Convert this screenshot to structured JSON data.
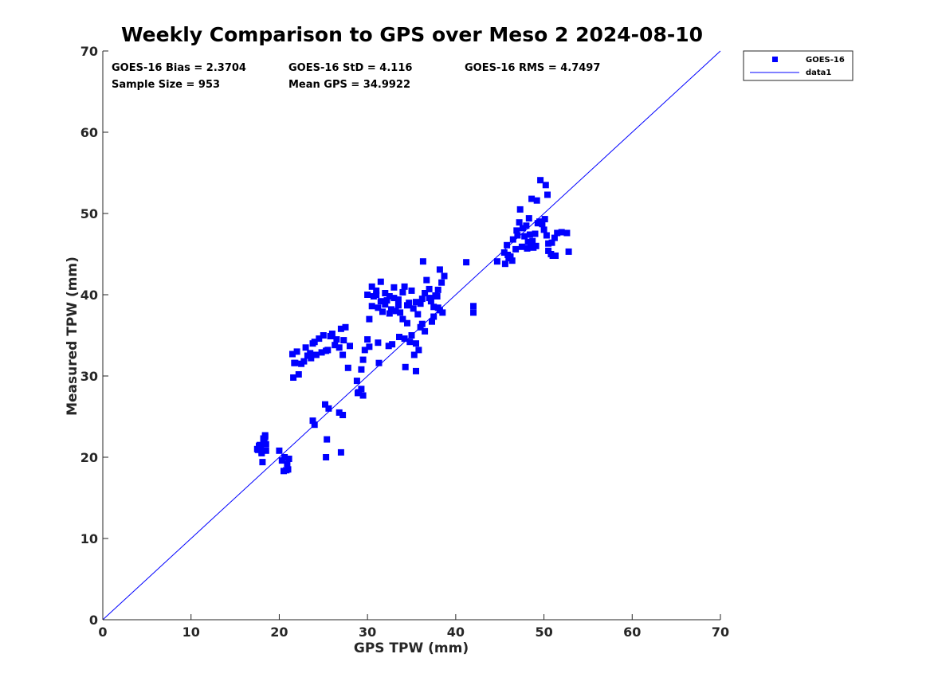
{
  "chart_data": {
    "type": "scatter",
    "title": "Weekly Comparison to GPS over Meso 2 2024-08-10",
    "xlabel": "GPS TPW (mm)",
    "ylabel": "Measured TPW (mm)",
    "xlim": [
      0,
      70
    ],
    "ylim": [
      0,
      70
    ],
    "xticks": [
      "0",
      "10",
      "20",
      "30",
      "40",
      "50",
      "60",
      "70"
    ],
    "yticks": [
      "0",
      "10",
      "20",
      "30",
      "40",
      "50",
      "60",
      "70"
    ],
    "grid": false,
    "legend_position": "outside-top-right",
    "stats": {
      "bias": "GOES-16 Bias = 2.3704",
      "std": "GOES-16 StD = 4.116",
      "rms": "GOES-16 RMS = 4.7497",
      "sample_size": "Sample Size = 953",
      "mean_gps": "Mean GPS = 34.9922"
    },
    "series": [
      {
        "name": "GOES-16",
        "type": "scatter",
        "marker": "square",
        "color": "#0000ff",
        "x": [
          17.5,
          17.8,
          18.0,
          18.2,
          18.4,
          18.5,
          17.9,
          18.3,
          17.6,
          18.1,
          18.5,
          18.2,
          18.0,
          17.7,
          18.4,
          20.0,
          20.3,
          20.6,
          20.9,
          21.0,
          20.5,
          21.1,
          20.8,
          21.5,
          21.7,
          22.0,
          21.6,
          22.2,
          21.8,
          23.0,
          23.5,
          24.0,
          23.2,
          22.8,
          23.8,
          24.5,
          25.0,
          25.5,
          26.0,
          26.5,
          27.0,
          27.5,
          28.0,
          24.2,
          25.3,
          26.3,
          27.3,
          26.8,
          25.8,
          23.6,
          22.5,
          24.8,
          27.8,
          27.2,
          23.8,
          24.0,
          25.2,
          25.6,
          26.8,
          27.2,
          25.4,
          25.3,
          27.0,
          28.8,
          29.0,
          29.3,
          29.5,
          29.7,
          30.0,
          30.2,
          30.5,
          30.7,
          31.0,
          31.2,
          31.5,
          31.7,
          32.0,
          32.2,
          32.5,
          32.7,
          33.0,
          33.2,
          33.5,
          33.7,
          34.0,
          34.2,
          34.5,
          34.7,
          35.0,
          35.2,
          35.5,
          35.7,
          36.0,
          36.2,
          36.5,
          36.7,
          37.0,
          37.2,
          37.5,
          37.7,
          38.0,
          38.2,
          30.0,
          30.5,
          31.0,
          31.5,
          32.0,
          32.5,
          33.0,
          33.5,
          34.0,
          34.5,
          35.0,
          35.5,
          36.0,
          36.5,
          37.0,
          37.5,
          38.0,
          38.5,
          31.2,
          32.8,
          34.2,
          35.8,
          37.3,
          29.5,
          30.2,
          31.3,
          32.4,
          33.6,
          34.8,
          35.3,
          36.2,
          28.9,
          29.3,
          34.3,
          35.5,
          36.3,
          38.2,
          38.4,
          38.7,
          37.9,
          41.2,
          42.0,
          42.0,
          45.5,
          46.0,
          46.5,
          47.0,
          47.5,
          48.0,
          48.5,
          49.0,
          49.5,
          50.0,
          50.5,
          51.0,
          51.5,
          52.0,
          45.8,
          46.8,
          47.8,
          48.8,
          49.8,
          50.8,
          46.2,
          47.2,
          48.2,
          49.2,
          50.2,
          51.2,
          52.8,
          47.3,
          48.3,
          49.3,
          50.3,
          48.6,
          49.6,
          50.1,
          50.4,
          50.5,
          48.7,
          48.4,
          47.6,
          46.4,
          45.6,
          51.3,
          52.6,
          50.9,
          49.1,
          48.1,
          46.9,
          45.9,
          44.7
        ],
        "y": [
          21.0,
          21.5,
          20.5,
          21.8,
          22.5,
          20.8,
          21.2,
          22.0,
          20.9,
          19.4,
          21.6,
          22.3,
          20.6,
          21.4,
          22.7,
          20.8,
          19.6,
          20.0,
          19.2,
          18.5,
          18.3,
          19.8,
          18.4,
          32.7,
          31.6,
          33.0,
          29.8,
          30.2,
          31.6,
          33.5,
          32.8,
          34.2,
          32.5,
          31.8,
          34.0,
          34.6,
          35.0,
          33.2,
          35.2,
          34.5,
          35.8,
          36.0,
          33.7,
          32.6,
          33.1,
          33.8,
          34.4,
          33.5,
          34.9,
          32.2,
          31.5,
          32.9,
          31.0,
          32.6,
          24.5,
          24.0,
          26.5,
          26.0,
          25.5,
          25.2,
          22.2,
          20.0,
          20.6,
          29.4,
          28.0,
          30.8,
          32.0,
          33.2,
          34.5,
          37.0,
          38.6,
          39.8,
          40.0,
          38.4,
          39.2,
          37.9,
          38.8,
          39.3,
          37.7,
          38.2,
          39.6,
          38.0,
          39.4,
          37.8,
          40.3,
          41.0,
          38.7,
          39.0,
          40.5,
          38.3,
          39.1,
          37.6,
          38.9,
          39.5,
          40.2,
          41.8,
          40.7,
          39.2,
          38.5,
          39.9,
          40.6,
          38.1,
          40.0,
          41.0,
          40.5,
          41.6,
          40.2,
          39.8,
          40.9,
          38.7,
          37.0,
          36.5,
          35.0,
          34.0,
          36.0,
          35.5,
          39.6,
          37.3,
          38.4,
          37.8,
          34.1,
          33.9,
          34.6,
          33.2,
          36.7,
          27.6,
          33.6,
          31.6,
          33.7,
          34.8,
          34.2,
          32.6,
          36.4,
          27.9,
          28.4,
          31.1,
          30.6,
          44.1,
          43.1,
          41.5,
          42.3,
          39.8,
          44.0,
          38.6,
          37.8,
          45.2,
          44.5,
          46.8,
          47.3,
          45.9,
          48.5,
          46.2,
          47.5,
          49.0,
          48.0,
          46.3,
          44.8,
          47.6,
          47.7,
          46.1,
          45.6,
          47.2,
          45.8,
          48.7,
          45.0,
          44.7,
          48.9,
          46.5,
          51.6,
          53.5,
          47.0,
          45.3,
          50.5,
          49.4,
          48.8,
          47.3,
          51.8,
          54.1,
          49.3,
          52.3,
          45.4,
          46.6,
          47.4,
          48.2,
          44.2,
          43.8,
          44.8,
          47.6,
          46.4,
          46.0,
          45.7,
          47.9,
          44.9,
          44.1
        ]
      },
      {
        "name": "data1",
        "type": "line",
        "color": "#0000ff",
        "x": [
          0,
          70
        ],
        "y": [
          0,
          70
        ]
      }
    ]
  }
}
